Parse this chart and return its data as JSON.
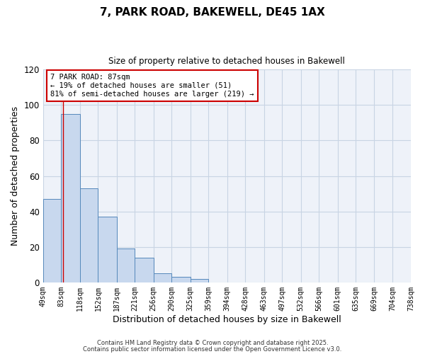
{
  "title": "7, PARK ROAD, BAKEWELL, DE45 1AX",
  "subtitle": "Size of property relative to detached houses in Bakewell",
  "xlabel": "Distribution of detached houses by size in Bakewell",
  "ylabel": "Number of detached properties",
  "bin_edges": [
    49,
    83,
    118,
    152,
    187,
    221,
    256,
    290,
    325,
    359,
    394,
    428,
    463,
    497,
    532,
    566,
    601,
    635,
    669,
    704,
    738
  ],
  "bin_labels": [
    "49sqm",
    "83sqm",
    "118sqm",
    "152sqm",
    "187sqm",
    "221sqm",
    "256sqm",
    "290sqm",
    "325sqm",
    "359sqm",
    "394sqm",
    "428sqm",
    "463sqm",
    "497sqm",
    "532sqm",
    "566sqm",
    "601sqm",
    "635sqm",
    "669sqm",
    "704sqm",
    "738sqm"
  ],
  "counts": [
    47,
    95,
    53,
    37,
    19,
    14,
    5,
    3,
    2,
    0,
    0,
    0,
    0,
    0,
    0,
    0,
    0,
    0,
    0,
    0
  ],
  "bar_facecolor": "#c8d8ee",
  "bar_edgecolor": "#5588bb",
  "grid_color": "#c8d4e4",
  "bg_color": "#ffffff",
  "plot_bg_color": "#eef2f9",
  "vline_x": 87,
  "vline_color": "#cc0000",
  "ylim": [
    0,
    120
  ],
  "yticks": [
    0,
    20,
    40,
    60,
    80,
    100,
    120
  ],
  "annotation_line1": "7 PARK ROAD: 87sqm",
  "annotation_line2": "← 19% of detached houses are smaller (51)",
  "annotation_line3": "81% of semi-detached houses are larger (219) →",
  "footnote1": "Contains HM Land Registry data © Crown copyright and database right 2025.",
  "footnote2": "Contains public sector information licensed under the Open Government Licence v3.0."
}
